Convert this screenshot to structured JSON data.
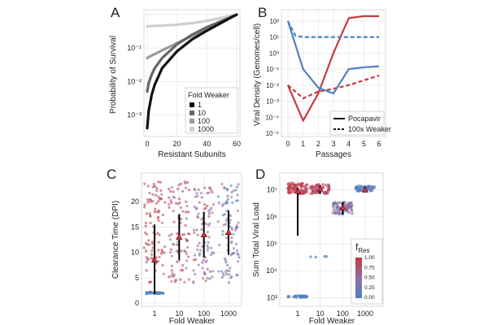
{
  "chart_data": [
    {
      "panel": "A",
      "type": "line",
      "title": "",
      "xlabel": "Resistant Subunits",
      "ylabel": "Probability of Survival",
      "xlim": [
        0,
        60
      ],
      "ylim_log10": [
        -3.5,
        0
      ],
      "x_ticks": [
        "0",
        "20",
        "40",
        "60"
      ],
      "y_ticks": [
        "10⁻³",
        "10⁻²",
        "10⁻¹"
      ],
      "legend_title": "Fold Weaker",
      "legend_position": "bottom-right",
      "series": [
        {
          "name": "1",
          "color": "#111111",
          "x": [
            0,
            1,
            3,
            5,
            10,
            20,
            30,
            40,
            50,
            60
          ],
          "y": [
            0.0004,
            0.0013,
            0.004,
            0.008,
            0.025,
            0.08,
            0.18,
            0.33,
            0.58,
            1.0
          ]
        },
        {
          "name": "10",
          "color": "#666666",
          "x": [
            0,
            1,
            3,
            5,
            10,
            20,
            30,
            40,
            50,
            60
          ],
          "y": [
            0.005,
            0.009,
            0.016,
            0.025,
            0.05,
            0.13,
            0.25,
            0.42,
            0.65,
            1.0
          ]
        },
        {
          "name": "100",
          "color": "#9a9a9a",
          "x": [
            0,
            2,
            5,
            10,
            20,
            30,
            40,
            50,
            60
          ],
          "y": [
            0.05,
            0.057,
            0.066,
            0.085,
            0.14,
            0.23,
            0.37,
            0.6,
            1.0
          ]
        },
        {
          "name": "1000",
          "color": "#cfcfcf",
          "x": [
            0,
            10,
            20,
            30,
            40,
            50,
            60
          ],
          "y": [
            0.45,
            0.47,
            0.5,
            0.56,
            0.65,
            0.8,
            1.0
          ]
        }
      ]
    },
    {
      "panel": "B",
      "type": "line",
      "xlabel": "Passages",
      "ylabel": "Viral Density (Genomes/cell)",
      "xlim": [
        0,
        6
      ],
      "ylim_log10": [
        -5,
        2.5
      ],
      "x_ticks": [
        "0",
        "1",
        "2",
        "3",
        "4",
        "5",
        "6"
      ],
      "y_ticks": [
        "10⁻⁵",
        "10⁻⁴",
        "10⁻³",
        "10⁻²",
        "10⁻¹",
        "10⁰",
        "10¹",
        "10²"
      ],
      "legend_position": "bottom-right",
      "legend": [
        {
          "label": "Pocapavir",
          "dash": "solid"
        },
        {
          "label": "100x Weaker",
          "dash": "dashed"
        }
      ],
      "series": [
        {
          "name": "Red, Pocapavir",
          "color": "#c8383f",
          "dash": "solid",
          "x": [
            0,
            1,
            2,
            3,
            4,
            5,
            6
          ],
          "y": [
            0.01,
            6e-05,
            0.003,
            1.0,
            150,
            200,
            200
          ]
        },
        {
          "name": "Red, 100x Weaker",
          "color": "#c8383f",
          "dash": "dashed",
          "x": [
            0,
            1,
            2,
            3,
            4,
            5,
            6
          ],
          "y": [
            0.01,
            0.0015,
            0.004,
            0.006,
            0.01,
            0.02,
            0.04
          ]
        },
        {
          "name": "Blue, Pocapavir",
          "color": "#4f7fc0",
          "dash": "solid",
          "x": [
            0,
            1,
            2,
            3,
            4,
            5,
            6
          ],
          "y": [
            100,
            0.1,
            0.007,
            0.003,
            0.1,
            0.13,
            0.15
          ]
        },
        {
          "name": "Blue, 100x Weaker",
          "color": "#4f7fc0",
          "dash": "dashed",
          "x": [
            0,
            0.5,
            1,
            2,
            3,
            4,
            5,
            6
          ],
          "y": [
            100,
            12,
            10,
            10,
            10,
            10,
            10,
            10
          ]
        }
      ]
    },
    {
      "panel": "C",
      "type": "scatter",
      "xlabel": "Fold Weaker",
      "ylabel": "Clearance Time (DPI)",
      "categories": [
        "1",
        "10",
        "100",
        "1000"
      ],
      "ylim": [
        0,
        25
      ],
      "y_ticks": [
        "0",
        "5",
        "10",
        "15",
        "20"
      ],
      "summary": [
        {
          "category": "1",
          "mean": 8.5,
          "lo": 1.7,
          "hi": 15.5
        },
        {
          "category": "10",
          "mean": 13,
          "lo": 8.5,
          "hi": 17.5
        },
        {
          "category": "100",
          "mean": 13.5,
          "lo": 9,
          "hi": 18
        },
        {
          "category": "1000",
          "mean": 14,
          "lo": 9.5,
          "hi": 18.3
        }
      ],
      "point_bands": [
        {
          "category": "1",
          "low_cluster": 2,
          "main_range": [
            4,
            24
          ]
        },
        {
          "category": "10",
          "main_range": [
            4,
            24
          ]
        },
        {
          "category": "100",
          "main_range": [
            4,
            24
          ]
        },
        {
          "category": "1000",
          "main_range": [
            4,
            24
          ]
        }
      ]
    },
    {
      "panel": "D",
      "type": "scatter",
      "xlabel": "Fold Weaker",
      "ylabel": "Sum Total Viral Load",
      "categories": [
        "1",
        "10",
        "100",
        "1000"
      ],
      "ylim_log10": [
        2.8,
        7.5
      ],
      "y_ticks": [
        "10³",
        "10⁴",
        "10⁵",
        "10⁶",
        "10⁷"
      ],
      "summary": [
        {
          "category": "1",
          "mean": 9000000,
          "lo": 200000,
          "hi": 12000000
        },
        {
          "category": "10",
          "mean": 11000000,
          "lo": 7000000,
          "hi": 15000000
        },
        {
          "category": "100",
          "mean": 2200000,
          "lo": 1200000,
          "hi": 3500000
        },
        {
          "category": "1000",
          "mean": 10000000,
          "lo": 8000000,
          "hi": 13000000
        }
      ],
      "legend_title": "f",
      "legend_title_sub": "Res",
      "legend_position": "bottom-right",
      "colorbar_ticks": [
        "1.00",
        "0.75",
        "0.50",
        "0.25",
        "0.00"
      ]
    }
  ],
  "panel_labels": [
    "A",
    "B",
    "C",
    "D"
  ],
  "colors": {
    "red": "#c8383f",
    "blue": "#4f7fc0",
    "purple": "#8e6fa6",
    "grid": "#e6e6e6",
    "panel_bg": "#ffffff"
  }
}
